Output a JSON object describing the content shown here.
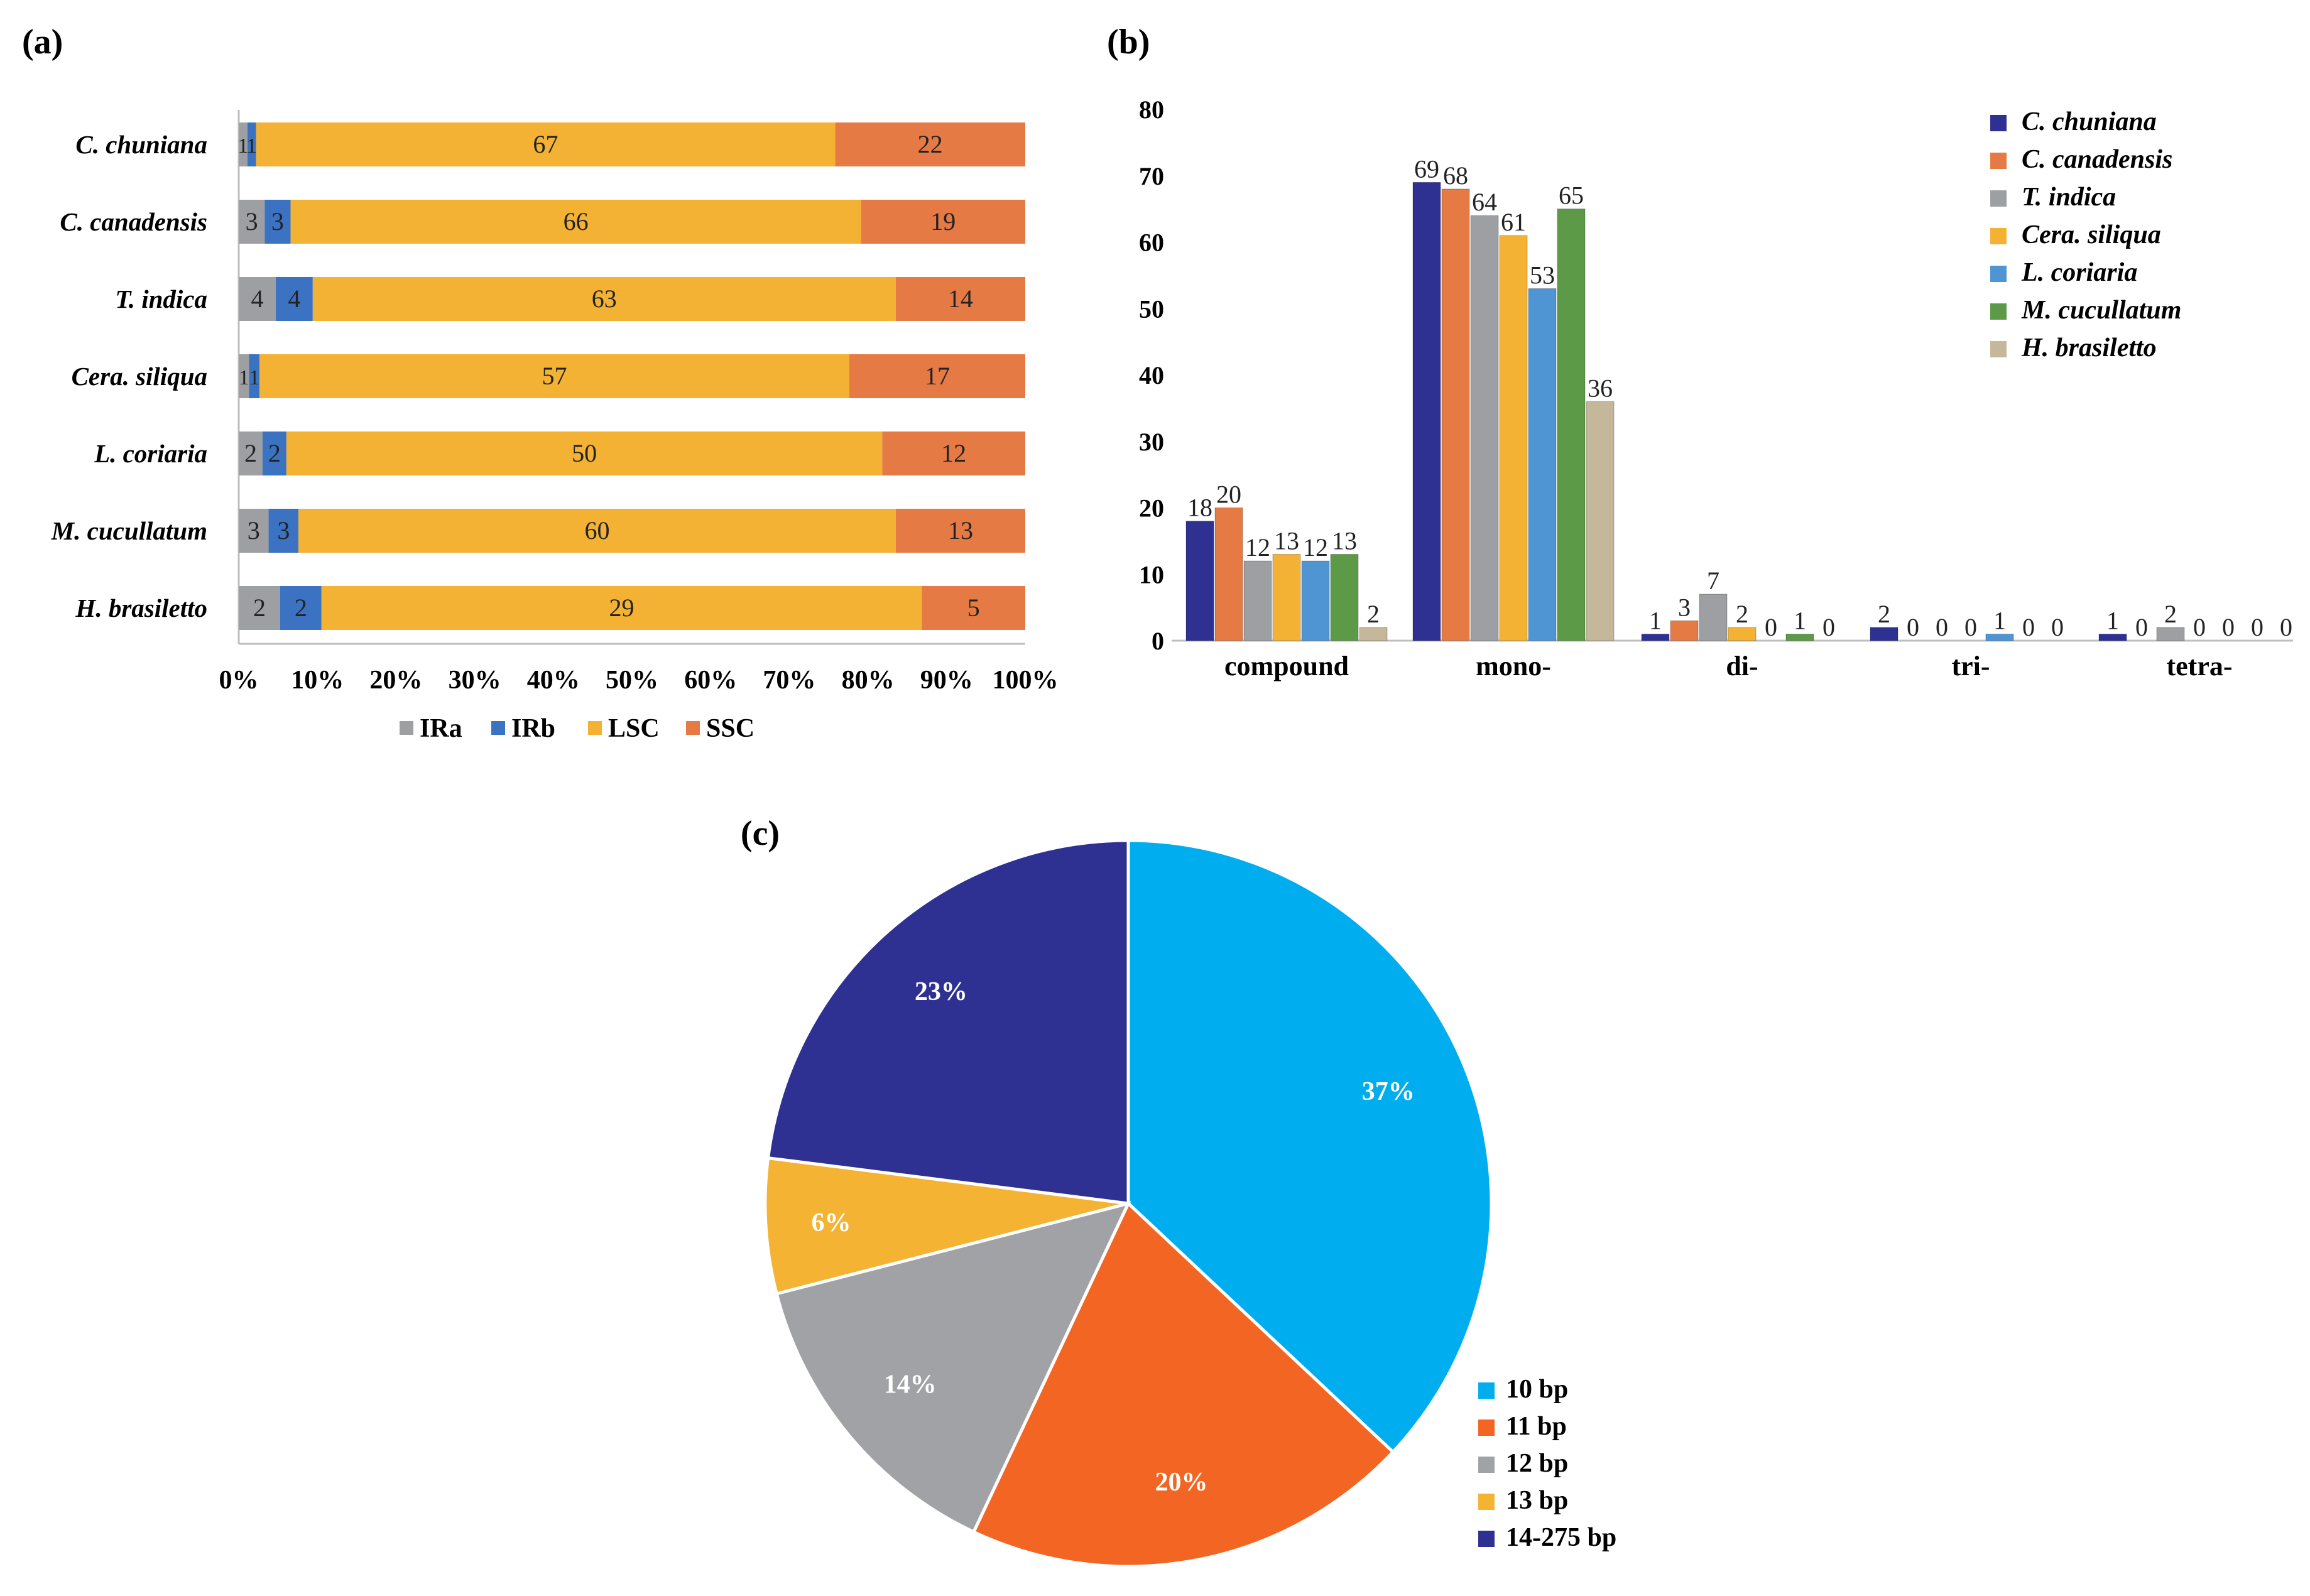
{
  "chart_data": [
    {
      "id": "a",
      "panel_label": "(a)",
      "type": "bar",
      "orientation": "horizontal",
      "stacked": true,
      "percent": true,
      "categories": [
        "C. chuniana",
        "C. canadensis",
        "T. indica",
        "Cera. siliqua",
        "L. coriaria",
        "M. cucullatum",
        "H. brasiletto"
      ],
      "series": [
        {
          "name": "IRa",
          "color": "#9e9fa2",
          "values": [
            1,
            3,
            4,
            1,
            2,
            3,
            2
          ]
        },
        {
          "name": "IRb",
          "color": "#3b73c2",
          "values": [
            1,
            3,
            4,
            1,
            2,
            3,
            2
          ]
        },
        {
          "name": "LSC",
          "color": "#f3b234",
          "values": [
            67,
            66,
            63,
            57,
            50,
            60,
            29
          ]
        },
        {
          "name": "SSC",
          "color": "#e57a45",
          "values": [
            22,
            19,
            14,
            17,
            12,
            13,
            5
          ]
        }
      ],
      "xticks": [
        "0%",
        "10%",
        "20%",
        "30%",
        "40%",
        "50%",
        "60%",
        "70%",
        "80%",
        "90%",
        "100%"
      ],
      "xlim": [
        0,
        100
      ],
      "legend_position": "bottom"
    },
    {
      "id": "b",
      "panel_label": "(b)",
      "type": "bar",
      "orientation": "vertical",
      "categories": [
        "compound",
        "mono-",
        "di-",
        "tri-",
        "tetra-"
      ],
      "series": [
        {
          "name": "C. chuniana",
          "color": "#2e3191",
          "values": [
            18,
            69,
            1,
            2,
            1
          ]
        },
        {
          "name": "C. canadensis",
          "color": "#e57a45",
          "values": [
            20,
            68,
            3,
            0,
            0
          ]
        },
        {
          "name": "T. indica",
          "color": "#9e9fa2",
          "values": [
            12,
            64,
            7,
            0,
            2
          ]
        },
        {
          "name": "Cera. siliqua",
          "color": "#f3b234",
          "values": [
            13,
            61,
            2,
            0,
            0
          ]
        },
        {
          "name": "L. coriaria",
          "color": "#4f94d3",
          "values": [
            12,
            53,
            0,
            1,
            0
          ]
        },
        {
          "name": "M. cucullatum",
          "color": "#5d9a48",
          "values": [
            13,
            65,
            1,
            0,
            0
          ]
        },
        {
          "name": "H. brasiletto",
          "color": "#c4b79a",
          "values": [
            2,
            36,
            0,
            0,
            0
          ]
        }
      ],
      "ylim": [
        0,
        80
      ],
      "yticks": [
        "0",
        "10",
        "20",
        "30",
        "40",
        "50",
        "60",
        "70",
        "80"
      ],
      "legend_position": "top-right"
    },
    {
      "id": "c",
      "panel_label": "(c)",
      "type": "pie",
      "slices": [
        {
          "name": "10 bp",
          "value": 37,
          "label": "37%",
          "color": "#00aeef"
        },
        {
          "name": "11 bp",
          "value": 20,
          "label": "20%",
          "color": "#f26522"
        },
        {
          "name": "12 bp",
          "value": 14,
          "label": "14%",
          "color": "#a0a2a5"
        },
        {
          "name": "13 bp",
          "value": 6,
          "label": "6%",
          "color": "#f4b333"
        },
        {
          "name": "14-275 bp",
          "value": 23,
          "label": "23%",
          "color": "#2e3191"
        }
      ],
      "legend_position": "bottom-right"
    }
  ]
}
